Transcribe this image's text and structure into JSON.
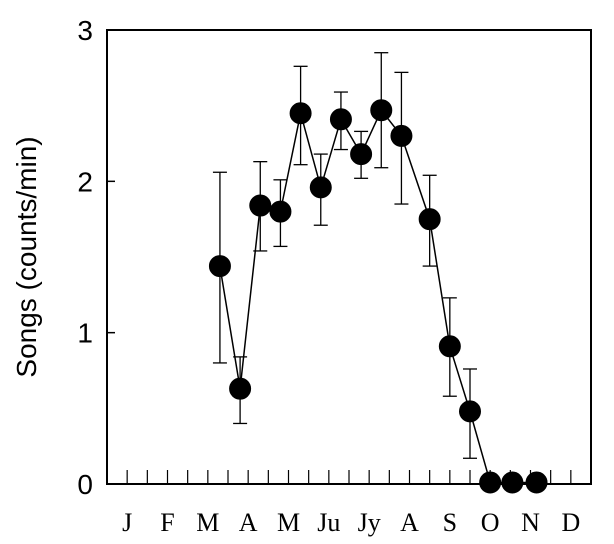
{
  "chart_data": {
    "type": "line",
    "title": "",
    "xlabel": "",
    "ylabel": "Songs (counts/min)",
    "ylim": [
      0,
      3
    ],
    "xlim": [
      0.5,
      12.5
    ],
    "yticks": [
      {
        "value": 0,
        "label": "0"
      },
      {
        "value": 1,
        "label": "1"
      },
      {
        "value": 2,
        "label": "2"
      },
      {
        "value": 3,
        "label": "3"
      }
    ],
    "xticks": [
      {
        "value": 1,
        "label": "J"
      },
      {
        "value": 2,
        "label": "F"
      },
      {
        "value": 3,
        "label": "M"
      },
      {
        "value": 4,
        "label": "A"
      },
      {
        "value": 5,
        "label": "M"
      },
      {
        "value": 6,
        "label": "Ju"
      },
      {
        "value": 7,
        "label": "Jy"
      },
      {
        "value": 8,
        "label": "A"
      },
      {
        "value": 9,
        "label": "S"
      },
      {
        "value": 10,
        "label": "O"
      },
      {
        "value": 11,
        "label": "N"
      },
      {
        "value": 12,
        "label": "D"
      }
    ],
    "minor_ticks": [
      1,
      1.5,
      2,
      2.5,
      3,
      3.5,
      4,
      4.5,
      5,
      5.5,
      6,
      6.5,
      7,
      7.5,
      8,
      8.5,
      9,
      9.5,
      10,
      10.5,
      11,
      11.5,
      12
    ],
    "grid": false,
    "legend": "none",
    "series": [
      {
        "color": "#000000",
        "marker": "filled-circle",
        "points": [
          {
            "x": 3.3,
            "y": 1.44,
            "err_low": 0.8,
            "err_high": 2.06
          },
          {
            "x": 3.8,
            "y": 0.63,
            "err_low": 0.4,
            "err_high": 0.84
          },
          {
            "x": 4.3,
            "y": 1.84,
            "err_low": 1.54,
            "err_high": 2.13
          },
          {
            "x": 4.8,
            "y": 1.8,
            "err_low": 1.57,
            "err_high": 2.01
          },
          {
            "x": 5.3,
            "y": 2.45,
            "err_low": 2.11,
            "err_high": 2.76
          },
          {
            "x": 5.8,
            "y": 1.96,
            "err_low": 1.71,
            "err_high": 2.18
          },
          {
            "x": 6.3,
            "y": 2.41,
            "err_low": 2.21,
            "err_high": 2.59
          },
          {
            "x": 6.8,
            "y": 2.18,
            "err_low": 2.02,
            "err_high": 2.33
          },
          {
            "x": 7.3,
            "y": 2.47,
            "err_low": 2.09,
            "err_high": 2.85
          },
          {
            "x": 7.8,
            "y": 2.3,
            "err_low": 1.85,
            "err_high": 2.72
          },
          {
            "x": 8.5,
            "y": 1.75,
            "err_low": 1.44,
            "err_high": 2.04
          },
          {
            "x": 9.0,
            "y": 0.91,
            "err_low": 0.58,
            "err_high": 1.23
          },
          {
            "x": 9.5,
            "y": 0.48,
            "err_low": 0.17,
            "err_high": 0.76
          },
          {
            "x": 10.0,
            "y": 0.01
          },
          {
            "x": 10.55,
            "y": 0.01
          },
          {
            "x": 11.15,
            "y": 0.01
          }
        ]
      }
    ]
  }
}
